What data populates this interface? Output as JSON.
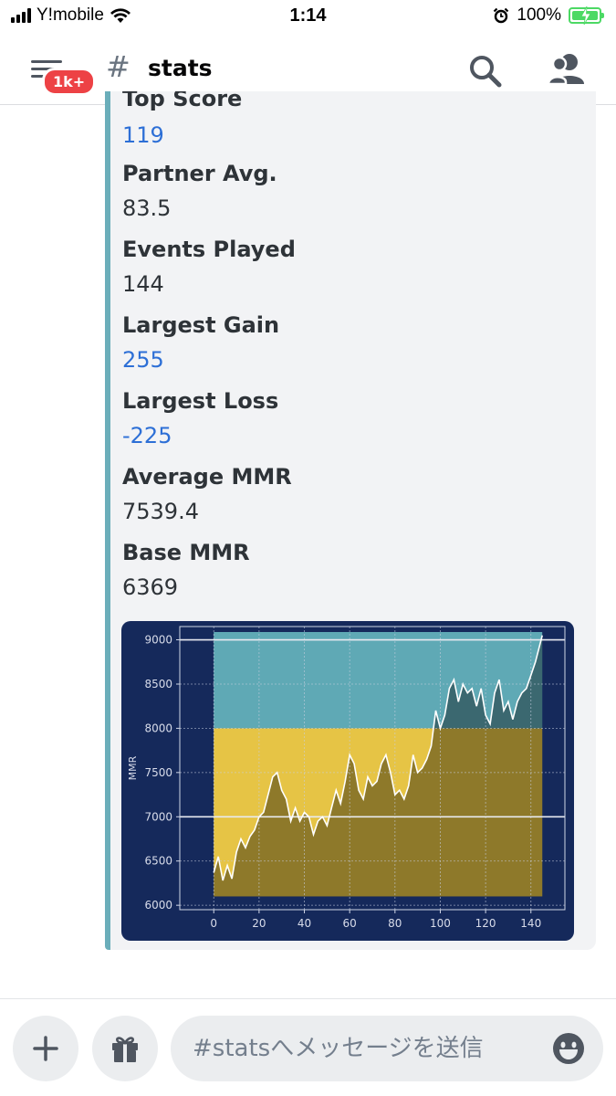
{
  "status_bar": {
    "carrier": "Y!mobile",
    "time": "1:14",
    "battery": "100%"
  },
  "header": {
    "unread_badge": "1k+",
    "channel_hash": "#",
    "channel_name": "stats"
  },
  "embed": {
    "accent_color": "#6baeba",
    "partial_field_name": "Top Score",
    "fields": [
      {
        "name": "Partner Avg.",
        "value": "83.5",
        "link": false
      },
      {
        "name": "Events Played",
        "value": "144",
        "link": false
      },
      {
        "name": "Largest Gain",
        "value": "255",
        "link": true
      },
      {
        "name": "Largest Loss",
        "value": "-225",
        "link": true
      },
      {
        "name": "Average MMR",
        "value": "7539.4",
        "link": false
      },
      {
        "name": "Base MMR",
        "value": "6369",
        "link": false
      }
    ],
    "top_score_value": "119"
  },
  "chart_data": {
    "type": "line",
    "title": "",
    "xlabel": "",
    "ylabel": "MMR",
    "xlim": [
      -15,
      155
    ],
    "ylim": [
      5950,
      9150
    ],
    "xticks": [
      0,
      20,
      40,
      60,
      80,
      100,
      120,
      140
    ],
    "yticks": [
      6000,
      6500,
      7000,
      7500,
      8000,
      8500,
      9000
    ],
    "grid": true,
    "bands": [
      {
        "from": 6100,
        "to": 8000,
        "color": "#e6c445"
      },
      {
        "from": 8000,
        "to": 9200,
        "color": "#5fa9b5"
      }
    ],
    "band_x_range": [
      0,
      145
    ],
    "series": [
      {
        "x": [
          0,
          2,
          4,
          6,
          8,
          10,
          12,
          14,
          16,
          18,
          20,
          22,
          24,
          26,
          28,
          30,
          32,
          34,
          36,
          38,
          40,
          42,
          44,
          46,
          48,
          50,
          52,
          54,
          56,
          58,
          60,
          62,
          64,
          66,
          68,
          70,
          72,
          74,
          76,
          78,
          80,
          82,
          84,
          86,
          88,
          90,
          92,
          94,
          96,
          98,
          100,
          102,
          104,
          106,
          108,
          110,
          112,
          114,
          116,
          118,
          120,
          122,
          124,
          126,
          128,
          130,
          132,
          134,
          136,
          138,
          140,
          142,
          144,
          145
        ],
        "values": [
          6369,
          6550,
          6280,
          6450,
          6300,
          6600,
          6750,
          6650,
          6780,
          6850,
          7000,
          7050,
          7250,
          7450,
          7500,
          7300,
          7200,
          6950,
          7100,
          6950,
          7050,
          7000,
          6800,
          6950,
          7000,
          6900,
          7100,
          7300,
          7150,
          7400,
          7700,
          7600,
          7300,
          7200,
          7450,
          7350,
          7400,
          7600,
          7700,
          7500,
          7250,
          7300,
          7200,
          7350,
          7700,
          7500,
          7550,
          7650,
          7800,
          8200,
          8000,
          8150,
          8450,
          8550,
          8300,
          8500,
          8400,
          8450,
          8250,
          8450,
          8150,
          8050,
          8400,
          8550,
          8200,
          8300,
          8100,
          8300,
          8400,
          8450,
          8600,
          8750,
          8950,
          9050
        ]
      }
    ]
  },
  "composer": {
    "placeholder": "#statsへメッセージを送信"
  }
}
